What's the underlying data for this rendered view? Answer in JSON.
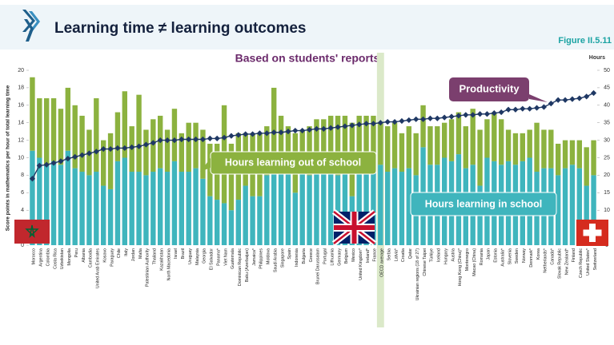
{
  "chart_data": {
    "type": "bar",
    "title": "Learning time ≠ learning outcomes",
    "figure_label": "Figure II.5.11",
    "subtitle": "Based on students' reports",
    "ylabel": "Score points in mathematics per hour of total learning time",
    "y2label": "Hours",
    "highlight_category": 49,
    "highlight_color": "#dbe9c9",
    "categories": [
      "Morocco",
      "Argentina",
      "Colombia",
      "Costa Rica",
      "Uzbekistan",
      "Mongolia",
      "Peru",
      "Albania",
      "Cambodia",
      "United Arab Emirates",
      "Kosovo",
      "Paraguay",
      "Chile",
      "Italy",
      "Jordan",
      "Malta",
      "Palestinian Authority",
      "Thailand",
      "Kazakhstan",
      "North Macedonia",
      "Israel",
      "Brazil",
      "Uruguay",
      "Malaysia",
      "Georgia",
      "El Salvador",
      "Panama*",
      "Viet Nam",
      "Guatemala",
      "Dominican Republic",
      "Baku (Azerbaijan)",
      "Jamaica*",
      "Philippines",
      "Moldova",
      "Saudi Arabia",
      "Singapore",
      "Spain",
      "Indonesia",
      "Bulgaria",
      "Greece",
      "Brunei Darussalam",
      "Portugal",
      "Lithuania",
      "Germany",
      "Belgium",
      "Mexico",
      "United Kingdom*",
      "Ireland*",
      "France",
      "OECD average",
      "Serbia",
      "Latvia*",
      "Croatia",
      "Qatar",
      "Ukrainian regions (18 of 27)",
      "Chinese Taipei",
      "Türkiye",
      "Iceland",
      "Hungary",
      "Austria",
      "Hong Kong (China)*",
      "Montenegro",
      "Macao (China)",
      "Romania",
      "Japan",
      "Estonia",
      "Australia*",
      "Slovenia",
      "Sweden",
      "Norway",
      "Denmark*",
      "Korea",
      "Netherlands*",
      "Canada*",
      "Slovak Republic",
      "New Zealand*",
      "Finland",
      "Czech Republic",
      "United States*",
      "Switzerland"
    ],
    "series": [
      {
        "name": "Hours learning in school",
        "color": "#3fb5bd",
        "axis": "y2",
        "values": [
          27,
          25,
          23,
          24,
          23,
          27,
          22,
          21,
          20,
          21,
          17,
          16,
          24,
          25,
          21,
          21,
          20,
          21,
          22,
          21,
          24,
          21,
          21,
          22,
          19,
          14,
          13,
          12,
          10,
          13,
          17,
          14,
          14,
          20,
          21,
          24,
          24,
          15,
          21,
          20,
          22,
          23,
          21,
          20,
          21,
          14,
          23,
          22,
          23,
          23,
          21,
          22,
          21,
          22,
          20,
          28,
          23,
          23,
          25,
          24,
          26,
          22,
          23,
          17,
          25,
          24,
          23,
          24,
          23,
          24,
          25,
          21,
          22,
          22,
          20,
          22,
          23,
          22,
          17,
          20
        ]
      },
      {
        "name": "Hours learning out of school",
        "color": "#8cb23f",
        "axis": "y2",
        "values": [
          21,
          17,
          19,
          18,
          16,
          18,
          18,
          16,
          13,
          21,
          13,
          16,
          14,
          19,
          13,
          22,
          13,
          15,
          15,
          12,
          15,
          11,
          14,
          13,
          14,
          15,
          16,
          28,
          19,
          19,
          15,
          18,
          18,
          14,
          24,
          13,
          10,
          17,
          12,
          14,
          14,
          13,
          16,
          17,
          16,
          21,
          14,
          15,
          14,
          12,
          13,
          13,
          11,
          12,
          12,
          12,
          11,
          11,
          10,
          12,
          12,
          12,
          16,
          16,
          11,
          14,
          13,
          9,
          9,
          8,
          8,
          14,
          11,
          11,
          9,
          8,
          7,
          8,
          11,
          10
        ]
      },
      {
        "name": "Productivity",
        "color": "#1f3864",
        "axis": "y",
        "values": [
          7.6,
          9.1,
          9.2,
          9.4,
          9.6,
          9.9,
          10.1,
          10.3,
          10.5,
          10.7,
          11.0,
          11.0,
          11.1,
          11.1,
          11.2,
          11.3,
          11.5,
          11.7,
          12.0,
          12.0,
          12.0,
          12.1,
          12.1,
          12.1,
          12.1,
          12.2,
          12.2,
          12.3,
          12.5,
          12.6,
          12.7,
          12.7,
          12.8,
          12.8,
          12.9,
          12.9,
          13.0,
          13.1,
          13.1,
          13.2,
          13.3,
          13.3,
          13.4,
          13.5,
          13.6,
          13.7,
          13.8,
          13.9,
          13.9,
          14.0,
          14.1,
          14.1,
          14.2,
          14.3,
          14.4,
          14.4,
          14.5,
          14.5,
          14.6,
          14.7,
          14.8,
          14.9,
          14.9,
          15.0,
          15.0,
          15.1,
          15.2,
          15.5,
          15.5,
          15.6,
          15.6,
          15.7,
          15.8,
          16.2,
          16.6,
          16.6,
          16.7,
          16.8,
          17.0,
          17.4
        ]
      }
    ],
    "ylim": [
      0,
      20
    ],
    "yticks": [
      0,
      2,
      4,
      6,
      8,
      10,
      12,
      14,
      16,
      18,
      20
    ],
    "y2lim": [
      0,
      50
    ],
    "y2ticks": [
      0,
      5,
      10,
      15,
      20,
      25,
      30,
      35,
      40,
      45,
      50
    ]
  }
}
